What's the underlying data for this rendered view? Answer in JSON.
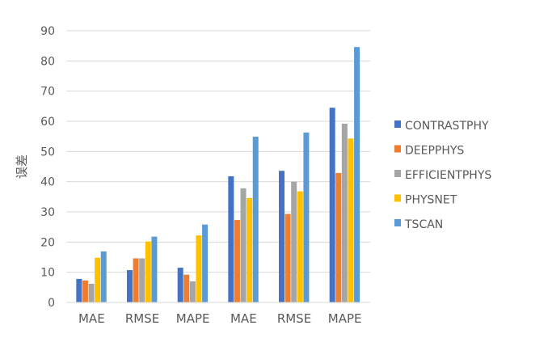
{
  "chart_data": {
    "type": "bar",
    "categories": [
      "MAE",
      "RMSE",
      "MAPE",
      "MAE",
      "RMSE",
      "MAPE"
    ],
    "series": [
      {
        "name": "CONTRASTPHY",
        "color": "#4472C4",
        "values": [
          7.8,
          10.7,
          11.5,
          41.8,
          43.6,
          64.5
        ]
      },
      {
        "name": "DEEPPHYS",
        "color": "#ED7D31",
        "values": [
          7.3,
          14.6,
          9.2,
          27.3,
          29.3,
          42.9
        ]
      },
      {
        "name": "EFFICIENTPHYS",
        "color": "#A5A5A5",
        "values": [
          6.2,
          14.6,
          7.0,
          37.8,
          40.0,
          59.2
        ]
      },
      {
        "name": "PHYSNET",
        "color": "#FFC000",
        "values": [
          14.8,
          20.2,
          22.2,
          34.6,
          36.8,
          54.3
        ]
      },
      {
        "name": "TSCAN",
        "color": "#5B9BD5",
        "values": [
          16.9,
          21.8,
          25.8,
          54.9,
          56.3,
          84.6
        ]
      }
    ],
    "ylabel": "误差",
    "xlabel": "",
    "ylim": [
      0,
      90
    ],
    "yticks": [
      0,
      10,
      20,
      30,
      40,
      50,
      60,
      70,
      80,
      90
    ],
    "grid": true,
    "legend_position": "right"
  }
}
